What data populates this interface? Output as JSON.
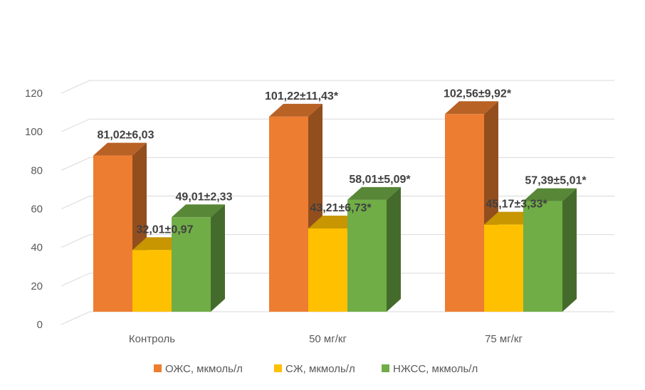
{
  "chart_data": {
    "type": "bar",
    "style": "3d-clustered-column",
    "title": "",
    "xlabel": "",
    "ylabel": "",
    "ylim": [
      0,
      120
    ],
    "yticks": [
      0,
      20,
      40,
      60,
      80,
      100,
      120
    ],
    "grid": true,
    "legend_position": "bottom",
    "categories": [
      "Контроль",
      "50 мг/кг",
      "75 мг/кг"
    ],
    "series": [
      {
        "name": "ОЖС, мкмоль/л",
        "color": "#ED7D31",
        "values": [
          81.02,
          101.22,
          102.56
        ],
        "labels": [
          "81,02±6,03",
          "101,22±11,43*",
          "102,56±9,92*"
        ]
      },
      {
        "name": "СЖ, мкмоль/л",
        "color": "#FFC000",
        "values": [
          32.01,
          43.21,
          45.17
        ],
        "labels": [
          "32,01±0,97",
          "43,21±6,73*",
          "45,17±3,33*"
        ]
      },
      {
        "name": "НЖСС, мкмоль/л",
        "color": "#70AD47",
        "values": [
          49.01,
          58.01,
          57.39
        ],
        "labels": [
          "49,01±2,33",
          "58,01±5,09*",
          "57,39±5,01*"
        ]
      }
    ]
  }
}
